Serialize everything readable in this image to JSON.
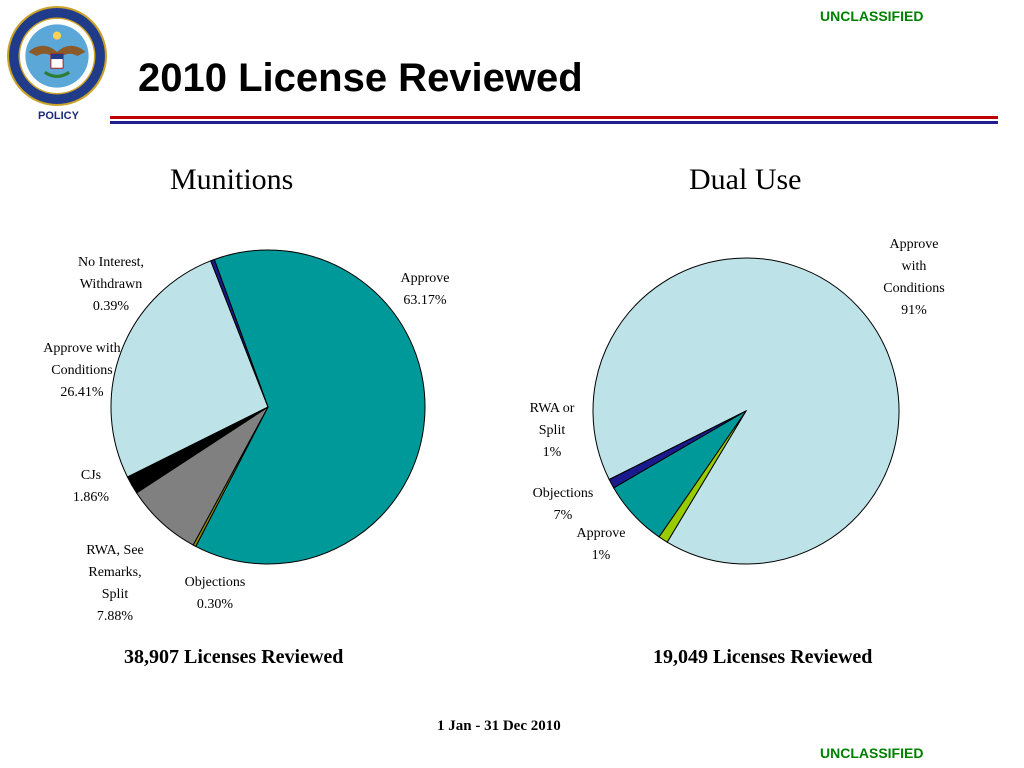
{
  "header": {
    "classification_top": "UNCLASSIFIED",
    "classification_bottom": "UNCLASSIFIED",
    "seal_label": "POLICY",
    "seal_text": "DEPARTMENT OF DEFENSE · UNITED STATES OF AMERICA",
    "title": "2010 License Reviewed"
  },
  "colors": {
    "teal": "#009999",
    "light_blue": "#bde3e8",
    "black": "#000000",
    "gray": "#808080",
    "olive": "#8c8c00",
    "navy": "#1a1a8c",
    "lime": "#99cc00"
  },
  "footer": {
    "munitions_total": "38,907 Licenses Reviewed",
    "dualuse_total": "19,049 Licenses Reviewed",
    "date_range": "1 Jan - 31 Dec 2010"
  },
  "chart_data": [
    {
      "type": "pie",
      "title": "Munitions",
      "slices": [
        {
          "label": [
            "Approve",
            "63.17%"
          ],
          "value": 63.17,
          "color": "#009999"
        },
        {
          "label": [
            "Objections",
            "0.30%"
          ],
          "value": 0.3,
          "color": "#8c8c00"
        },
        {
          "label": [
            "RWA, See",
            "Remarks,",
            "Split",
            "7.88%"
          ],
          "value": 7.88,
          "color": "#808080"
        },
        {
          "label": [
            "CJs",
            "1.86%"
          ],
          "value": 1.86,
          "color": "#000000"
        },
        {
          "label": [
            "Approve with",
            "Conditions",
            "26.41%"
          ],
          "value": 26.41,
          "color": "#bde3e8"
        },
        {
          "label": [
            "No Interest,",
            "Withdrawn",
            "0.39%"
          ],
          "value": 0.39,
          "color": "#1a1a8c"
        }
      ]
    },
    {
      "type": "pie",
      "title": "Dual Use",
      "slices": [
        {
          "label": [
            "Approve",
            "with",
            "Conditions",
            "91%"
          ],
          "value": 91,
          "color": "#bde3e8"
        },
        {
          "label": [
            "Approve",
            "1%"
          ],
          "value": 1,
          "color": "#1a1a8c"
        },
        {
          "label": [
            "Objections",
            "7%"
          ],
          "value": 7,
          "color": "#009999"
        },
        {
          "label": [
            "RWA or",
            "Split",
            "1%"
          ],
          "value": 1,
          "color": "#99cc00"
        }
      ]
    }
  ]
}
